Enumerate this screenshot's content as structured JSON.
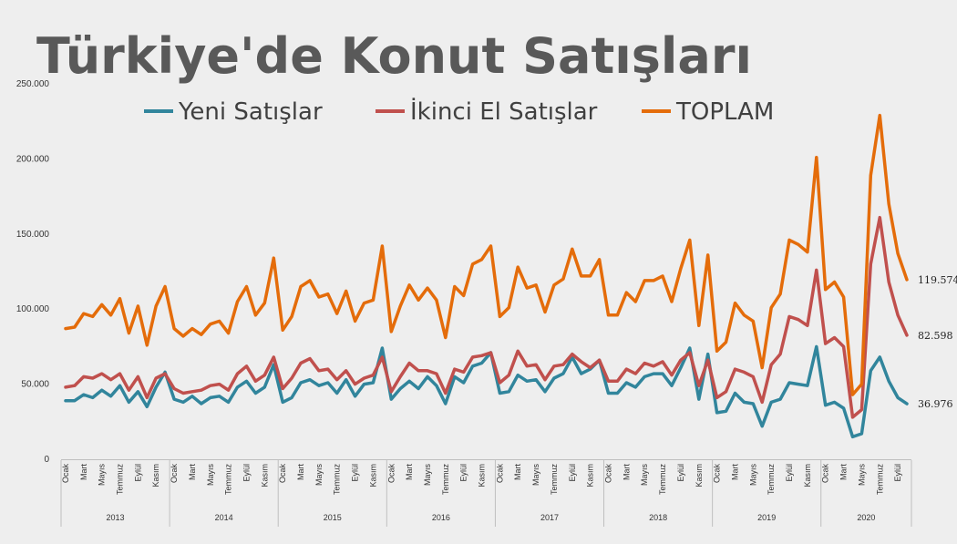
{
  "chart_data": {
    "type": "line",
    "title": "Türkiye'de Konut Satışları",
    "ylim": [
      0,
      250000
    ],
    "y_ticks": [
      "0",
      "50.000",
      "100.000",
      "150.000",
      "200.000",
      "250.000"
    ],
    "y_tick_values": [
      0,
      50000,
      100000,
      150000,
      200000,
      250000
    ],
    "grid": false,
    "legend_position": "top",
    "month_labels": [
      "Ocak",
      "Mart",
      "Mayıs",
      "Temmuz",
      "Eylül",
      "Kasım"
    ],
    "years": [
      "2013",
      "2014",
      "2015",
      "2016",
      "2017",
      "2018",
      "2019",
      "2020"
    ],
    "series": [
      {
        "name": "Yeni Satışlar",
        "color": "#31859C",
        "values": [
          39000,
          39000,
          43000,
          41000,
          46000,
          42000,
          49000,
          38000,
          45000,
          35000,
          48000,
          58000,
          40000,
          38000,
          42000,
          37000,
          41000,
          42000,
          38000,
          48000,
          52000,
          44000,
          48000,
          63000,
          38000,
          41000,
          51000,
          53000,
          49000,
          51000,
          44000,
          53000,
          42000,
          50000,
          51000,
          74000,
          40000,
          47000,
          52000,
          47000,
          55000,
          49000,
          37000,
          55000,
          51000,
          62000,
          64000,
          71000,
          44000,
          45000,
          56000,
          52000,
          53000,
          45000,
          54000,
          57000,
          68000,
          57000,
          60000,
          66000,
          44000,
          44000,
          51000,
          48000,
          55000,
          57000,
          57000,
          49000,
          61000,
          74000,
          40000,
          70000,
          31000,
          32000,
          44000,
          38000,
          37000,
          22000,
          38000,
          40000,
          51000,
          50000,
          49000,
          75000,
          36000,
          38000,
          34000,
          15000,
          17000,
          59000,
          68000,
          52000,
          41000,
          36976
        ]
      },
      {
        "name": "İkinci El Satışlar",
        "color": "#C0504D",
        "values": [
          48000,
          49000,
          55000,
          54000,
          57000,
          53000,
          57000,
          46000,
          55000,
          41000,
          54000,
          57000,
          47000,
          44000,
          45000,
          46000,
          49000,
          50000,
          46000,
          57000,
          62000,
          52000,
          56000,
          68000,
          47000,
          54000,
          64000,
          67000,
          59000,
          60000,
          53000,
          59000,
          50000,
          54000,
          56000,
          68000,
          45000,
          55000,
          64000,
          59000,
          59000,
          57000,
          44000,
          60000,
          58000,
          68000,
          69000,
          71000,
          51000,
          56000,
          72000,
          62000,
          63000,
          53000,
          62000,
          63000,
          70000,
          65000,
          61000,
          66000,
          52000,
          52000,
          60000,
          57000,
          64000,
          62000,
          65000,
          56000,
          66000,
          71000,
          49000,
          66000,
          41000,
          45000,
          60000,
          58000,
          55000,
          38000,
          63000,
          70000,
          95000,
          93000,
          89000,
          126000,
          77000,
          81000,
          75000,
          28000,
          33000,
          130000,
          161000,
          118000,
          96000,
          82598
        ]
      },
      {
        "name": "TOPLAM",
        "color": "#E46C0A",
        "values": [
          87000,
          88000,
          97000,
          95000,
          103000,
          96000,
          107000,
          84000,
          102000,
          76000,
          102000,
          115000,
          87000,
          82000,
          87000,
          83000,
          90000,
          92000,
          84000,
          105000,
          115000,
          96000,
          104000,
          134000,
          86000,
          95000,
          115000,
          119000,
          108000,
          110000,
          97000,
          112000,
          92000,
          104000,
          106000,
          142000,
          85000,
          102000,
          116000,
          106000,
          114000,
          106000,
          81000,
          115000,
          109000,
          130000,
          133000,
          142000,
          95000,
          101000,
          128000,
          114000,
          116000,
          98000,
          116000,
          120000,
          140000,
          122000,
          122000,
          133000,
          96000,
          96000,
          111000,
          105000,
          119000,
          119000,
          122000,
          105000,
          127000,
          146000,
          89000,
          136000,
          72000,
          78000,
          104000,
          96000,
          92000,
          61000,
          101000,
          110000,
          146000,
          143000,
          138000,
          201000,
          113000,
          118000,
          108000,
          43000,
          50000,
          189000,
          229000,
          170000,
          137000,
          119574
        ]
      }
    ],
    "end_labels": [
      "119.574",
      "82.598",
      "36.976"
    ]
  }
}
